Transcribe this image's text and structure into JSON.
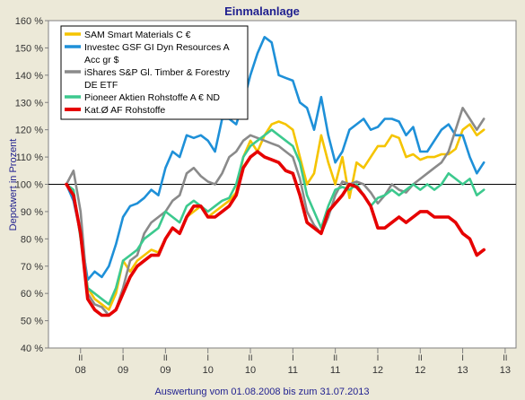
{
  "chart_data": {
    "type": "line",
    "title": "Einmalanlage",
    "ylabel": "Depotwert in Prozent",
    "footer": "Auswertung vom 01.08.2008 bis zum 31.07.2013",
    "ylim": [
      40,
      160
    ],
    "ytick_values": [
      40,
      50,
      60,
      70,
      80,
      90,
      100,
      110,
      120,
      130,
      140,
      150,
      160
    ],
    "ytick_labels": [
      "40 %",
      "50 %",
      "60 %",
      "70 %",
      "80 %",
      "90 %",
      "100 %",
      "110 %",
      "120 %",
      "130 %",
      "140 %",
      "150 %",
      "160 %"
    ],
    "reference_line": 100,
    "grid": false,
    "legend_position": "top-left",
    "x_range": [
      "2008-08",
      "2013-09"
    ],
    "x_quarter_ticks": [
      {
        "x": "2008-10",
        "roman": "II",
        "year": "08"
      },
      {
        "x": "2009-04",
        "roman": "I",
        "year": "09"
      },
      {
        "x": "2009-10",
        "roman": "II",
        "year": "09"
      },
      {
        "x": "2010-04",
        "roman": "I",
        "year": "10"
      },
      {
        "x": "2010-10",
        "roman": "II",
        "year": "10"
      },
      {
        "x": "2011-04",
        "roman": "I",
        "year": "11"
      },
      {
        "x": "2011-10",
        "roman": "II",
        "year": "11"
      },
      {
        "x": "2012-04",
        "roman": "I",
        "year": "12"
      },
      {
        "x": "2012-10",
        "roman": "II",
        "year": "12"
      },
      {
        "x": "2013-04",
        "roman": "I",
        "year": "13"
      },
      {
        "x": "2013-10",
        "roman": "II",
        "year": "13"
      }
    ],
    "x": [
      "2008-08",
      "2008-09",
      "2008-10",
      "2008-11",
      "2008-12",
      "2009-01",
      "2009-02",
      "2009-03",
      "2009-04",
      "2009-05",
      "2009-06",
      "2009-07",
      "2009-08",
      "2009-09",
      "2009-10",
      "2009-11",
      "2009-12",
      "2010-01",
      "2010-02",
      "2010-03",
      "2010-04",
      "2010-05",
      "2010-06",
      "2010-07",
      "2010-08",
      "2010-09",
      "2010-10",
      "2010-11",
      "2010-12",
      "2011-01",
      "2011-02",
      "2011-03",
      "2011-04",
      "2011-05",
      "2011-06",
      "2011-07",
      "2011-08",
      "2011-09",
      "2011-10",
      "2011-11",
      "2011-12",
      "2012-01",
      "2012-02",
      "2012-03",
      "2012-04",
      "2012-05",
      "2012-06",
      "2012-07",
      "2012-08",
      "2012-09",
      "2012-10",
      "2012-11",
      "2012-12",
      "2013-01",
      "2013-02",
      "2013-03",
      "2013-04",
      "2013-05",
      "2013-06",
      "2013-07"
    ],
    "series": [
      {
        "name": "SAM Smart Materials C €",
        "color": "#f5c400",
        "values": [
          100,
          96,
          82,
          62,
          58,
          56,
          54,
          60,
          72,
          68,
          72,
          74,
          76,
          75,
          80,
          84,
          82,
          88,
          90,
          92,
          88,
          90,
          92,
          94,
          97,
          110,
          116,
          112,
          118,
          122,
          123,
          122,
          120,
          110,
          100,
          104,
          118,
          108,
          100,
          110,
          95,
          108,
          106,
          110,
          114,
          114,
          118,
          117,
          110,
          111,
          109,
          110,
          110,
          111,
          111,
          113,
          120,
          122,
          118,
          120
        ]
      },
      {
        "name": "Investec GSF GI Dyn Resources A Acc gr $",
        "color": "#1e90d8",
        "values": [
          100,
          94,
          82,
          65,
          68,
          66,
          70,
          78,
          88,
          92,
          93,
          95,
          98,
          96,
          106,
          112,
          110,
          118,
          117,
          118,
          116,
          112,
          124,
          124,
          122,
          130,
          140,
          148,
          154,
          152,
          140,
          139,
          138,
          130,
          128,
          120,
          132,
          118,
          108,
          112,
          120,
          122,
          124,
          120,
          121,
          124,
          124,
          123,
          118,
          121,
          112,
          112,
          116,
          120,
          122,
          118,
          118,
          110,
          104,
          108
        ]
      },
      {
        "name": "iShares S&P Gl. Timber & Forestry DE ETF",
        "color": "#8a8a8a",
        "values": [
          100,
          105,
          90,
          60,
          56,
          55,
          52,
          54,
          62,
          72,
          74,
          82,
          86,
          88,
          90,
          94,
          96,
          104,
          106,
          103,
          101,
          100,
          104,
          110,
          112,
          116,
          118,
          117,
          116,
          115,
          114,
          112,
          110,
          102,
          90,
          85,
          82,
          88,
          96,
          101,
          100,
          101,
          100,
          97,
          93,
          96,
          100,
          98,
          97,
          100,
          102,
          104,
          106,
          108,
          112,
          120,
          128,
          124,
          120,
          124
        ]
      },
      {
        "name": "Pioneer Aktien Rohstoffe A € ND",
        "color": "#3cc98e",
        "values": [
          100,
          98,
          80,
          62,
          60,
          58,
          56,
          62,
          72,
          74,
          76,
          80,
          82,
          84,
          90,
          88,
          86,
          92,
          94,
          92,
          90,
          92,
          94,
          95,
          100,
          110,
          114,
          116,
          118,
          120,
          118,
          116,
          114,
          108,
          96,
          90,
          84,
          92,
          98,
          99,
          98,
          100,
          96,
          92,
          95,
          96,
          98,
          96,
          98,
          100,
          98,
          100,
          98,
          100,
          104,
          102,
          100,
          102,
          96,
          98
        ]
      },
      {
        "name": "Kat.Ø AF Rohstoffe",
        "color": "#e60000",
        "values": [
          100,
          96,
          82,
          58,
          54,
          52,
          52,
          54,
          60,
          66,
          70,
          72,
          74,
          74,
          80,
          84,
          82,
          88,
          92,
          92,
          88,
          88,
          90,
          92,
          96,
          106,
          110,
          112,
          110,
          109,
          108,
          105,
          104,
          96,
          86,
          84,
          82,
          90,
          93,
          96,
          100,
          99,
          96,
          92,
          84,
          84,
          86,
          88,
          86,
          88,
          90,
          90,
          88,
          88,
          88,
          86,
          82,
          80,
          74,
          76
        ]
      }
    ]
  }
}
